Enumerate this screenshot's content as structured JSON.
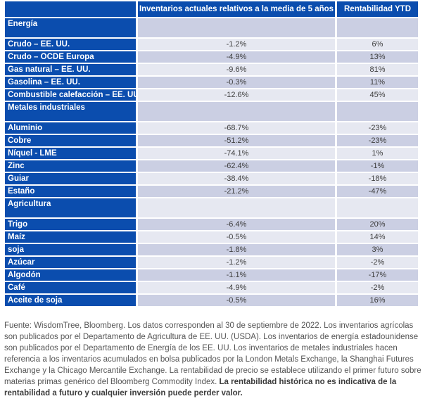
{
  "colors": {
    "header_blue": "#0b4dae",
    "row_shade_dark": "#cbcfe3",
    "row_shade_light": "#e6e8f1",
    "header_text": "#ffffff",
    "value_text": "#3d3d3d",
    "footer_text": "#555555"
  },
  "chart_data": {
    "type": "table",
    "columns": [
      "",
      "Inventarios actuales relativos a la media de 5 años",
      "Rentabilidad YTD"
    ],
    "sections": [
      {
        "label": "Energía",
        "rows": [
          {
            "label": "Crudo – EE. UU.",
            "inventory": "-1.2%",
            "ytd": "6%"
          },
          {
            "label": "Crudo – OCDE Europa",
            "inventory": "-4.9%",
            "ytd": "13%"
          },
          {
            "label": "Gas natural – EE. UU.",
            "inventory": "-9.6%",
            "ytd": "81%"
          },
          {
            "label": "Gasolina – EE. UU.",
            "inventory": "-0.3%",
            "ytd": "11%"
          },
          {
            "label": "Combustible calefacción – EE. UU.",
            "inventory": "-12.6%",
            "ytd": "45%"
          }
        ]
      },
      {
        "label": "Metales industriales",
        "rows": [
          {
            "label": "Aluminio",
            "inventory": "-68.7%",
            "ytd": "-23%"
          },
          {
            "label": "Cobre",
            "inventory": "-51.2%",
            "ytd": "-23%"
          },
          {
            "label": "Níquel - LME",
            "inventory": "-74.1%",
            "ytd": "1%"
          },
          {
            "label": "Zinc",
            "inventory": "-62.4%",
            "ytd": "-1%"
          },
          {
            "label": "Guiar",
            "inventory": "-38.4%",
            "ytd": "-18%"
          },
          {
            "label": "Estaño",
            "inventory": "-21.2%",
            "ytd": "-47%"
          }
        ]
      },
      {
        "label": "Agricultura",
        "rows": [
          {
            "label": "Trigo",
            "inventory": "-6.4%",
            "ytd": "20%"
          },
          {
            "label": "Maíz",
            "inventory": "-0.5%",
            "ytd": "14%"
          },
          {
            "label": "soja",
            "inventory": "-1.8%",
            "ytd": "3%"
          },
          {
            "label": "Azúcar",
            "inventory": "-1.2%",
            "ytd": "-2%"
          },
          {
            "label": "Algodón",
            "inventory": "-1.1%",
            "ytd": "-17%"
          },
          {
            "label": "Café",
            "inventory": "-4.9%",
            "ytd": "-2%"
          },
          {
            "label": "Aceite de soja",
            "inventory": "-0.5%",
            "ytd": "16%"
          }
        ]
      }
    ]
  },
  "footer": {
    "text": "Fuente: WisdomTree, Bloomberg. Los datos corresponden al 30 de septiembre de 2022. Los inventarios agrícolas son publicados por el Departamento de Agricultura de EE. UU. (USDA). Los inventarios de energía estadounidense son publicados por el Departamento de Energía de los EE. UU. Los inventarios de metales industriales hacen referencia a los inventarios acumulados en bolsa publicados por la London Metals Exchange, la Shanghai Futures Exchange y la Chicago Mercantile Exchange. La rentabilidad de precio se establece utilizando el primer futuro sobre materias primas genérico del Bloomberg Commodity Index. ",
    "bold_text": "La rentabilidad histórica no es indicativa de la rentabilidad a futuro y cualquier inversión puede perder valor."
  }
}
